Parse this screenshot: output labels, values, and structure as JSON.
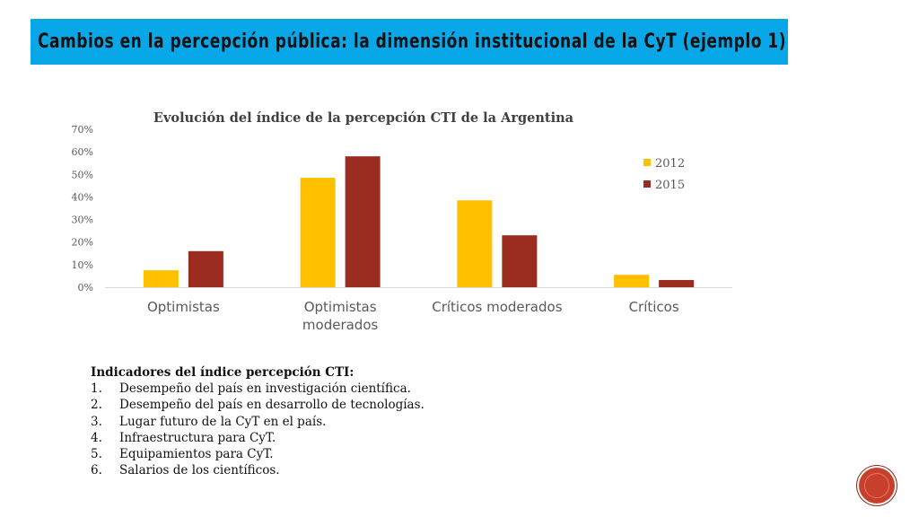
{
  "slide": {
    "title": "Cambios en la percepción pública: la dimensión institucional de la CyT (ejemplo 1)",
    "accent_color": "#08a8e8"
  },
  "chart_data": {
    "type": "bar",
    "title": "Evolución del índice de la percepción CTI de la Argentina",
    "categories": [
      [
        "Optimistas"
      ],
      [
        "Optimistas",
        "moderados"
      ],
      [
        "Críticos moderados"
      ],
      [
        "Críticos"
      ]
    ],
    "series": [
      {
        "name": "2012",
        "color": "#ffc000",
        "values": [
          7.5,
          48.5,
          38.5,
          5.5
        ]
      },
      {
        "name": "2015",
        "color": "#9b2d20",
        "values": [
          16,
          58,
          23,
          3.2
        ]
      }
    ],
    "ylim": [
      0,
      70
    ],
    "yticks": [
      0,
      10,
      20,
      30,
      40,
      50,
      60,
      70
    ],
    "ytick_labels": [
      "0%",
      "10%",
      "20%",
      "30%",
      "40%",
      "50%",
      "60%",
      "70%"
    ],
    "grid": false,
    "legend_position": "right"
  },
  "indicators": {
    "heading": "Indicadores del índice percepción CTI:",
    "items": [
      {
        "num": "1.",
        "text": "Desempeño del país en investigación científica."
      },
      {
        "num": "2.",
        "text": "Desempeño del país en desarrollo de tecnologías."
      },
      {
        "num": "3.",
        "text": "Lugar futuro de la CyT en el país."
      },
      {
        "num": "4.",
        "text": "Infraestructura para CyT."
      },
      {
        "num": "5.",
        "text": "Equipamientos para CyT."
      },
      {
        "num": "6.",
        "text": "Salarios de los científicos."
      }
    ]
  }
}
